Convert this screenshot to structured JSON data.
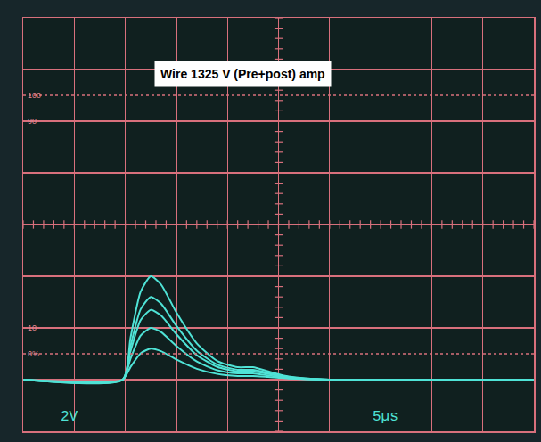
{
  "chart_data": {
    "type": "line",
    "title": "Wire 1325 V (Pre+post) amp",
    "x": [
      0,
      9.75,
      10.5,
      11.5,
      12.5,
      13.5,
      15,
      17,
      19,
      21,
      22.5,
      24,
      26,
      30,
      40,
      50
    ],
    "series": [
      {
        "color": "#4fe3d6",
        "values": [
          -6,
          -6,
          -4.4,
          -2.6,
          -2.0,
          -2.32,
          -3.4,
          -4.6,
          -5.28,
          -5.52,
          -5.52,
          -5.68,
          -5.88,
          -6,
          -6,
          -6
        ]
      },
      {
        "color": "#4fe3d6",
        "values": [
          -6,
          -6,
          -4.72,
          -3.28,
          -2.8,
          -3.06,
          -3.92,
          -4.88,
          -5.42,
          -5.62,
          -5.62,
          -5.74,
          -5.9,
          -6,
          -6,
          -6
        ]
      },
      {
        "color": "#4fe3d6",
        "values": [
          -6,
          -6,
          -4.92,
          -3.7,
          -3.3,
          -3.52,
          -4.24,
          -5.05,
          -5.51,
          -5.68,
          -5.68,
          -5.78,
          -5.92,
          -6,
          -6,
          -6
        ]
      },
      {
        "color": "#4fe3d6",
        "values": [
          -6,
          -6,
          -5.2,
          -4.3,
          -4.0,
          -4.16,
          -4.7,
          -5.3,
          -5.64,
          -5.76,
          -5.76,
          -5.84,
          -5.94,
          -6,
          -6,
          -6
        ]
      },
      {
        "color": "#4fe3d6",
        "values": [
          -6,
          -6,
          -5.52,
          -4.98,
          -4.8,
          -4.9,
          -5.22,
          -5.58,
          -5.78,
          -5.86,
          -5.86,
          -5.9,
          -5.96,
          -6,
          -6,
          -6
        ]
      }
    ],
    "xlim": [
      0,
      50
    ],
    "xticks": [
      0,
      5,
      10,
      15,
      20,
      25,
      30,
      35,
      40,
      45,
      50
    ],
    "ylim": [
      -8,
      8
    ],
    "yticks": [
      -8,
      -6,
      -4,
      -2,
      0,
      2,
      4,
      6,
      8
    ],
    "grid": true,
    "tick_labels": false,
    "annotations": [
      "100",
      "90",
      "10",
      "0%",
      "2V",
      "5µs"
    ]
  }
}
